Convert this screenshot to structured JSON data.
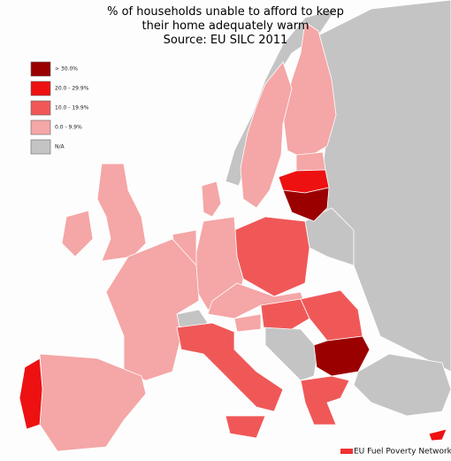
{
  "title_lines": [
    "% of households unable to afford to keep",
    "their home adequately warm",
    "Source: EU SILC 2011"
  ],
  "legend": [
    {
      "label": "> 30.0%",
      "color": "#9b0000"
    },
    {
      "label": "20.0 - 29.9%",
      "color": "#ee1111"
    },
    {
      "label": "10.0 - 19.9%",
      "color": "#f05858"
    },
    {
      "label": "0.0 - 9.9%",
      "color": "#f5a6a6"
    },
    {
      "label": "N/A",
      "color": "#c4c4c4"
    }
  ],
  "footer": "EU Fuel Poverty Network"
}
